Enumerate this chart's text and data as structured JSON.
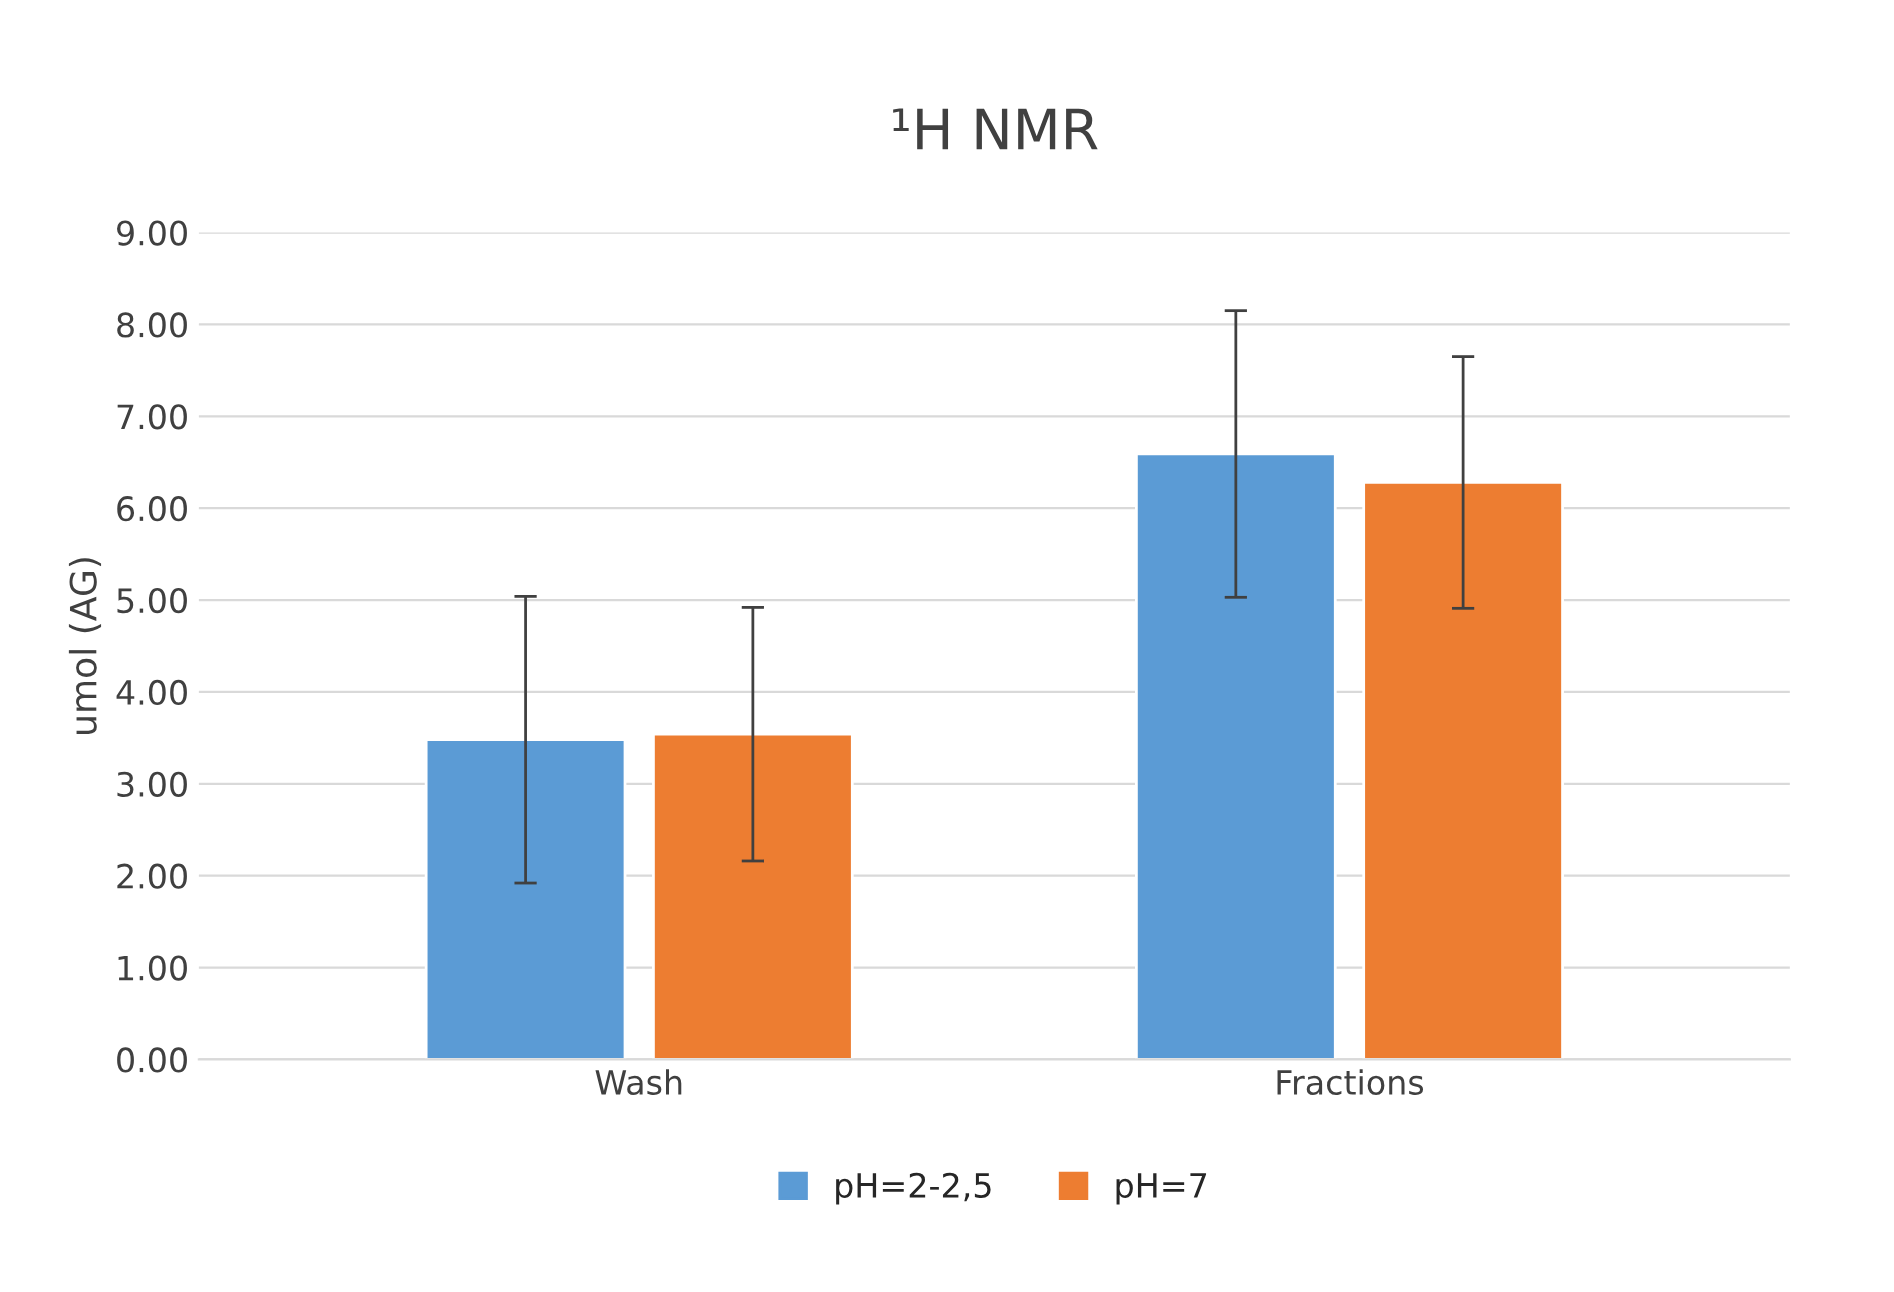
{
  "chart_data": {
    "type": "bar",
    "title": "¹H NMR",
    "ylabel": "umol (AG)",
    "categories": [
      "Wash",
      "Fractions"
    ],
    "series": [
      {
        "name": "pH=2-2,5",
        "color": "#5b9bd5",
        "values": [
          3.48,
          6.59
        ],
        "errors": [
          1.56,
          1.56
        ]
      },
      {
        "name": "pH=7",
        "color": "#ed7d31",
        "values": [
          3.54,
          6.28
        ],
        "errors": [
          1.38,
          1.37
        ]
      }
    ],
    "ylim": [
      0,
      9
    ],
    "yticks": [
      {
        "value": 0,
        "label": "0.00"
      },
      {
        "value": 1,
        "label": "1.00"
      },
      {
        "value": 2,
        "label": "2.00"
      },
      {
        "value": 3,
        "label": "3.00"
      },
      {
        "value": 4,
        "label": "4.00"
      },
      {
        "value": 5,
        "label": "5.00"
      },
      {
        "value": 6,
        "label": "6.00"
      },
      {
        "value": 7,
        "label": "7.00"
      },
      {
        "value": 8,
        "label": "8.00"
      },
      {
        "value": 9,
        "label": "9.00"
      }
    ],
    "grid": "y",
    "legend": "bottom"
  }
}
